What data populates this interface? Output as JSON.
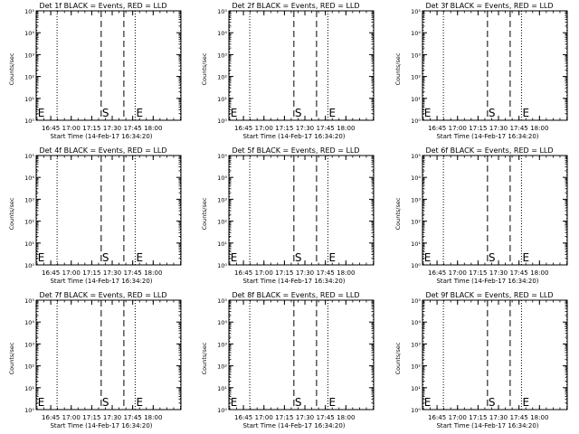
{
  "chart_data": {
    "type": "line",
    "layout": "3x3 grid",
    "panels": [
      {
        "title": "Det 1f BLACK = Events, RED = LLD"
      },
      {
        "title": "Det 2f BLACK = Events, RED = LLD"
      },
      {
        "title": "Det 3f BLACK = Events, RED = LLD"
      },
      {
        "title": "Det 4f BLACK = Events, RED = LLD"
      },
      {
        "title": "Det 5f BLACK = Events, RED = LLD"
      },
      {
        "title": "Det 6f BLACK = Events, RED = LLD"
      },
      {
        "title": "Det 7f BLACK = Events, RED = LLD"
      },
      {
        "title": "Det 8f BLACK = Events, RED = LLD"
      },
      {
        "title": "Det 9f BLACK = Events, RED = LLD"
      }
    ],
    "xlabel": "Start Time (14-Feb-17 16:34:20)",
    "ylabel": "Counts/sec",
    "x_axis": {
      "unit": "minutes after 16:34:20",
      "range": [
        0,
        106
      ],
      "ticks": [
        {
          "value": 10.67,
          "label": "16:45"
        },
        {
          "value": 25.67,
          "label": "17:00"
        },
        {
          "value": 40.67,
          "label": "17:15"
        },
        {
          "value": 55.67,
          "label": "17:30"
        },
        {
          "value": 70.67,
          "label": "17:45"
        },
        {
          "value": 85.67,
          "label": "18:00"
        }
      ]
    },
    "y_axis": {
      "scale": "log",
      "range": [
        1,
        100000
      ],
      "ticks": [
        {
          "value": 1,
          "label": "10⁰"
        },
        {
          "value": 10,
          "label": "10¹"
        },
        {
          "value": 100,
          "label": "10²"
        },
        {
          "value": 1000,
          "label": "10³"
        },
        {
          "value": 10000,
          "label": "10⁴"
        },
        {
          "value": 100000,
          "label": "10⁵"
        }
      ]
    },
    "vertical_lines": [
      {
        "x": 0.5,
        "style": "dotted"
      },
      {
        "x": 15.3,
        "style": "dotted"
      },
      {
        "x": 47.6,
        "style": "dashed"
      },
      {
        "x": 64.2,
        "style": "dashed"
      },
      {
        "x": 72.5,
        "style": "dotted"
      },
      {
        "x": 105.7,
        "style": "dotted"
      }
    ],
    "markers": [
      {
        "text": "E",
        "x": 1.2
      },
      {
        "text": "S",
        "x": 48.3
      },
      {
        "text": "E",
        "x": 73.2
      }
    ],
    "grid": false,
    "series": []
  }
}
